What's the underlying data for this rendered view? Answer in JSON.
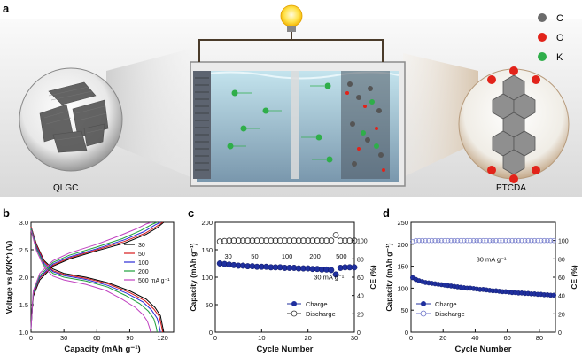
{
  "panel_a": {
    "letter": "a",
    "left_label": "QLGC",
    "right_label": "PTCDA",
    "legend": [
      {
        "element": "C",
        "color": "#6b6b6b"
      },
      {
        "element": "O",
        "color": "#e2231a"
      },
      {
        "element": "K",
        "color": "#2fae4a"
      }
    ]
  },
  "panel_letters": {
    "b": "b",
    "c": "c",
    "d": "d"
  },
  "chart_data": [
    {
      "panel": "b",
      "type": "line",
      "xlabel": "Capacity (mAh g⁻¹)",
      "ylabel": "Voltage vs (K/K⁺) (V)",
      "xlim": [
        0,
        130
      ],
      "ylim": [
        1.0,
        3.0
      ],
      "xticks": [
        "0",
        "30",
        "60",
        "90",
        "120"
      ],
      "yticks": [
        "1.0",
        "1.5",
        "2.0",
        "2.5",
        "3.0"
      ],
      "legend_placement": "right",
      "series": [
        {
          "name": "30",
          "color": "#000000",
          "discharge": [
            [
              0,
              2.92
            ],
            [
              5,
              2.6
            ],
            [
              12,
              2.3
            ],
            [
              20,
              2.15
            ],
            [
              30,
              2.07
            ],
            [
              50,
              2.0
            ],
            [
              70,
              1.9
            ],
            [
              90,
              1.75
            ],
            [
              105,
              1.6
            ],
            [
              113,
              1.45
            ],
            [
              118,
              1.3
            ],
            [
              120,
              1.1
            ],
            [
              121,
              1.0
            ]
          ],
          "charge": [
            [
              0,
              1.12
            ],
            [
              2,
              1.65
            ],
            [
              8,
              1.95
            ],
            [
              20,
              2.2
            ],
            [
              35,
              2.33
            ],
            [
              60,
              2.48
            ],
            [
              85,
              2.62
            ],
            [
              105,
              2.78
            ],
            [
              115,
              2.9
            ],
            [
              121,
              3.0
            ]
          ]
        },
        {
          "name": "50",
          "color": "#d7191c",
          "discharge": [
            [
              0,
              2.92
            ],
            [
              5,
              2.58
            ],
            [
              12,
              2.28
            ],
            [
              20,
              2.12
            ],
            [
              30,
              2.05
            ],
            [
              50,
              1.98
            ],
            [
              70,
              1.88
            ],
            [
              90,
              1.72
            ],
            [
              104,
              1.57
            ],
            [
              112,
              1.42
            ],
            [
              117,
              1.28
            ],
            [
              119,
              1.1
            ],
            [
              120,
              1.0
            ]
          ],
          "charge": [
            [
              0,
              1.1
            ],
            [
              2,
              1.68
            ],
            [
              8,
              1.98
            ],
            [
              20,
              2.22
            ],
            [
              35,
              2.35
            ],
            [
              60,
              2.5
            ],
            [
              85,
              2.65
            ],
            [
              104,
              2.8
            ],
            [
              114,
              2.92
            ],
            [
              120,
              3.0
            ]
          ]
        },
        {
          "name": "100",
          "color": "#2b2bd6",
          "discharge": [
            [
              0,
              2.9
            ],
            [
              5,
              2.55
            ],
            [
              12,
              2.25
            ],
            [
              20,
              2.1
            ],
            [
              30,
              2.03
            ],
            [
              50,
              1.96
            ],
            [
              70,
              1.85
            ],
            [
              88,
              1.7
            ],
            [
              102,
              1.55
            ],
            [
              110,
              1.4
            ],
            [
              115,
              1.25
            ],
            [
              117,
              1.1
            ],
            [
              118,
              1.0
            ]
          ],
          "charge": [
            [
              0,
              1.08
            ],
            [
              2,
              1.7
            ],
            [
              8,
              2.0
            ],
            [
              20,
              2.24
            ],
            [
              35,
              2.37
            ],
            [
              60,
              2.52
            ],
            [
              85,
              2.68
            ],
            [
              103,
              2.83
            ],
            [
              113,
              2.95
            ],
            [
              118,
              3.0
            ]
          ]
        },
        {
          "name": "200",
          "color": "#1fa03c",
          "discharge": [
            [
              0,
              2.88
            ],
            [
              5,
              2.52
            ],
            [
              12,
              2.22
            ],
            [
              20,
              2.07
            ],
            [
              30,
              2.0
            ],
            [
              50,
              1.93
            ],
            [
              70,
              1.82
            ],
            [
              86,
              1.67
            ],
            [
              99,
              1.52
            ],
            [
              107,
              1.38
            ],
            [
              112,
              1.24
            ],
            [
              114,
              1.1
            ],
            [
              115,
              1.0
            ]
          ],
          "charge": [
            [
              0,
              1.06
            ],
            [
              2,
              1.72
            ],
            [
              8,
              2.03
            ],
            [
              20,
              2.27
            ],
            [
              35,
              2.4
            ],
            [
              60,
              2.55
            ],
            [
              83,
              2.7
            ],
            [
              100,
              2.85
            ],
            [
              110,
              2.96
            ],
            [
              115,
              3.0
            ]
          ]
        },
        {
          "name": "500 mA g⁻¹",
          "color": "#c040c0",
          "discharge": [
            [
              0,
              2.85
            ],
            [
              5,
              2.48
            ],
            [
              12,
              2.18
            ],
            [
              20,
              2.02
            ],
            [
              30,
              1.95
            ],
            [
              50,
              1.87
            ],
            [
              68,
              1.76
            ],
            [
              83,
              1.6
            ],
            [
              95,
              1.45
            ],
            [
              102,
              1.32
            ],
            [
              106,
              1.2
            ],
            [
              108,
              1.08
            ],
            [
              109,
              1.0
            ]
          ],
          "charge": [
            [
              0,
              1.05
            ],
            [
              2,
              1.75
            ],
            [
              8,
              2.07
            ],
            [
              20,
              2.3
            ],
            [
              35,
              2.44
            ],
            [
              60,
              2.6
            ],
            [
              80,
              2.75
            ],
            [
              96,
              2.88
            ],
            [
              105,
              2.97
            ],
            [
              110,
              3.0
            ]
          ]
        }
      ]
    },
    {
      "panel": "c",
      "type": "scatter",
      "xlabel": "Cycle Number",
      "ylabel": "Capacity (mAh g⁻¹)",
      "y2label": "CE (%)",
      "xlim": [
        0,
        30
      ],
      "ylim": [
        0,
        200
      ],
      "y2lim": [
        0,
        120
      ],
      "xticks": [
        "0",
        "10",
        "20",
        "30"
      ],
      "yticks": [
        "0",
        "50",
        "100",
        "150",
        "200"
      ],
      "y2ticks": [
        "0",
        "20",
        "40",
        "60",
        "80",
        "100"
      ],
      "rate_labels": [
        "30",
        "50",
        "100",
        "200",
        "500",
        "30 mA g⁻¹"
      ],
      "series": [
        {
          "name": "Charge",
          "marker": "filled",
          "color": "#1f2f9e",
          "x": [
            1,
            2,
            3,
            4,
            5,
            6,
            7,
            8,
            9,
            10,
            11,
            12,
            13,
            14,
            15,
            16,
            17,
            18,
            19,
            20,
            21,
            22,
            23,
            24,
            25,
            26,
            27,
            28,
            29,
            30
          ],
          "values": [
            125,
            124,
            123,
            122,
            121,
            121,
            120,
            120,
            119,
            119,
            119,
            118,
            118,
            118,
            117,
            117,
            117,
            116,
            116,
            116,
            115,
            115,
            114,
            114,
            113,
            105,
            117,
            118,
            118,
            118
          ]
        },
        {
          "name": "Discharge",
          "marker": "open",
          "color": "#1f2f9e",
          "axis": "right",
          "x": [
            1,
            2,
            3,
            4,
            5,
            6,
            7,
            8,
            9,
            10,
            11,
            12,
            13,
            14,
            15,
            16,
            17,
            18,
            19,
            20,
            21,
            22,
            23,
            24,
            25,
            26,
            27,
            28,
            29,
            30
          ],
          "values": [
            99,
            99.5,
            100,
            100,
            100,
            100,
            100,
            100,
            100,
            100,
            100,
            100,
            100,
            100,
            100,
            100,
            100,
            100,
            100,
            100,
            100,
            100,
            100,
            100,
            100,
            106,
            100,
            100,
            100,
            100
          ]
        }
      ]
    },
    {
      "panel": "d",
      "type": "scatter",
      "xlabel": "Cycle Number",
      "ylabel": "Capacity (mAh g⁻¹)",
      "y2label": "CE (%)",
      "xlim": [
        0,
        90
      ],
      "ylim": [
        0,
        250
      ],
      "y2lim": [
        0,
        120
      ],
      "xticks": [
        "0",
        "20",
        "40",
        "60",
        "80"
      ],
      "yticks": [
        "0",
        "50",
        "100",
        "150",
        "200",
        "250"
      ],
      "y2ticks": [
        "0",
        "20",
        "40",
        "60",
        "80",
        "100"
      ],
      "annotation": "30 mA g⁻¹",
      "series": [
        {
          "name": "Charge",
          "marker": "filled",
          "color": "#1f2f9e",
          "x": [
            1,
            3,
            5,
            7,
            9,
            11,
            13,
            15,
            17,
            19,
            21,
            23,
            25,
            27,
            29,
            31,
            33,
            35,
            37,
            39,
            41,
            43,
            45,
            47,
            49,
            51,
            53,
            55,
            57,
            59,
            61,
            63,
            65,
            67,
            69,
            71,
            73,
            75,
            77,
            79,
            81,
            83,
            85,
            87,
            89
          ],
          "values": [
            124,
            120,
            117,
            115,
            113,
            112,
            111,
            110,
            109,
            108,
            107,
            106,
            105,
            104,
            103,
            102,
            101,
            100,
            100,
            99,
            98,
            97,
            97,
            96,
            95,
            94,
            94,
            93,
            92,
            92,
            91,
            90,
            90,
            89,
            89,
            88,
            88,
            87,
            87,
            86,
            86,
            85,
            85,
            84,
            84
          ]
        },
        {
          "name": "Discharge",
          "marker": "open",
          "color": "#6a72c8",
          "axis": "right",
          "x": [
            1,
            3,
            5,
            7,
            9,
            11,
            13,
            15,
            17,
            19,
            21,
            23,
            25,
            27,
            29,
            31,
            33,
            35,
            37,
            39,
            41,
            43,
            45,
            47,
            49,
            51,
            53,
            55,
            57,
            59,
            61,
            63,
            65,
            67,
            69,
            71,
            73,
            75,
            77,
            79,
            81,
            83,
            85,
            87,
            89
          ],
          "values": [
            99,
            100,
            100,
            100,
            100,
            100,
            100,
            100,
            100,
            100,
            100,
            100,
            100,
            100,
            100,
            100,
            100,
            100,
            100,
            100,
            100,
            100,
            100,
            100,
            100,
            100,
            100,
            100,
            100,
            100,
            100,
            100,
            100,
            100,
            100,
            100,
            100,
            100,
            100,
            100,
            100,
            100,
            100,
            100,
            100
          ]
        }
      ]
    }
  ]
}
